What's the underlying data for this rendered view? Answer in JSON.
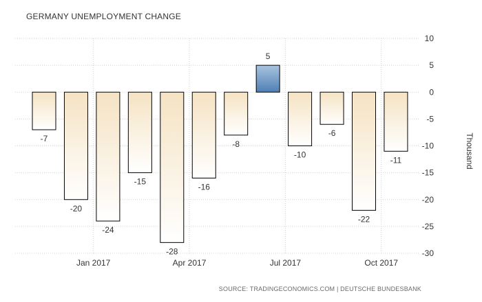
{
  "chart_data": {
    "type": "bar",
    "title": "GERMANY UNEMPLOYMENT CHANGE",
    "ylabel": "Thousand",
    "x_ticks": [
      "Jan 2017",
      "Apr 2017",
      "Jul 2017",
      "Oct 2017"
    ],
    "x_tick_positions": [
      2,
      5,
      8,
      11
    ],
    "values": [
      -7,
      -20,
      -24,
      -15,
      -28,
      -16,
      -8,
      5,
      -10,
      -6,
      -22,
      -11
    ],
    "ylim": [
      -30,
      10
    ],
    "yticks": [
      10,
      5,
      0,
      -5,
      -10,
      -15,
      -20,
      -25,
      -30
    ],
    "grid": true,
    "colors": {
      "negative_fill_top": "#f5e3c3",
      "negative_fill_bottom": "#ffffff",
      "positive_fill_top": "#a9c4e0",
      "positive_fill_bottom": "#4f7fb4",
      "gridline": "#d0d0d0",
      "axis_text": "#333333"
    }
  },
  "source": "SOURCE: TRADINGECONOMICS.COM | DEUTSCHE BUNDESBANK"
}
